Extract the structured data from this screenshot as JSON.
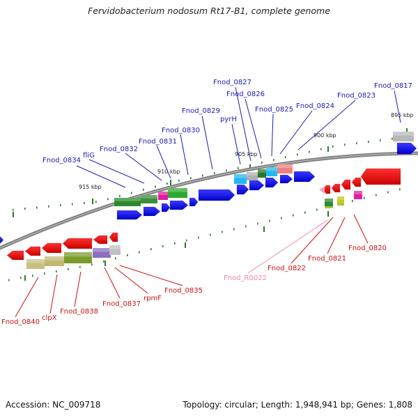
{
  "title": "Fervidobacterium nodosum Rt17-B1, complete genome",
  "footer": {
    "accession": "Accession: NC_009718",
    "summary": "Topology: circular; Length: 1,948,941 bp; Genes: 1,808"
  },
  "scale_ticks": [
    "915 kbp",
    "910 kbp",
    "905 kbp",
    "900 kbp",
    "895 kbp"
  ],
  "labels_top": [
    "Fnod_0834",
    "fliG",
    "Fnod_0832",
    "Fnod_0831",
    "Fnod_0830",
    "Fnod_0829",
    "pyrH",
    "Fnod_0827",
    "Fnod_0826",
    "Fnod_0825",
    "Fnod_0824",
    "Fnod_0823",
    "Fnod_0817"
  ],
  "labels_bottom": [
    "Fnod_0840",
    "clpX",
    "Fnod_0838",
    "Fnod_0837",
    "rpmF",
    "Fnod_0835",
    "Fnod_R0022",
    "Fnod_0822",
    "Fnod_0821",
    "Fnod_0820"
  ],
  "colors": {
    "forward_strand": "#1010e0",
    "reverse_strand": "#e81010",
    "label_forward": "#1a1ab0",
    "label_reverse": "#cc1111",
    "label_rna": "#ee88aa",
    "backbone": "#808080",
    "tick": "#2a7a2a"
  }
}
